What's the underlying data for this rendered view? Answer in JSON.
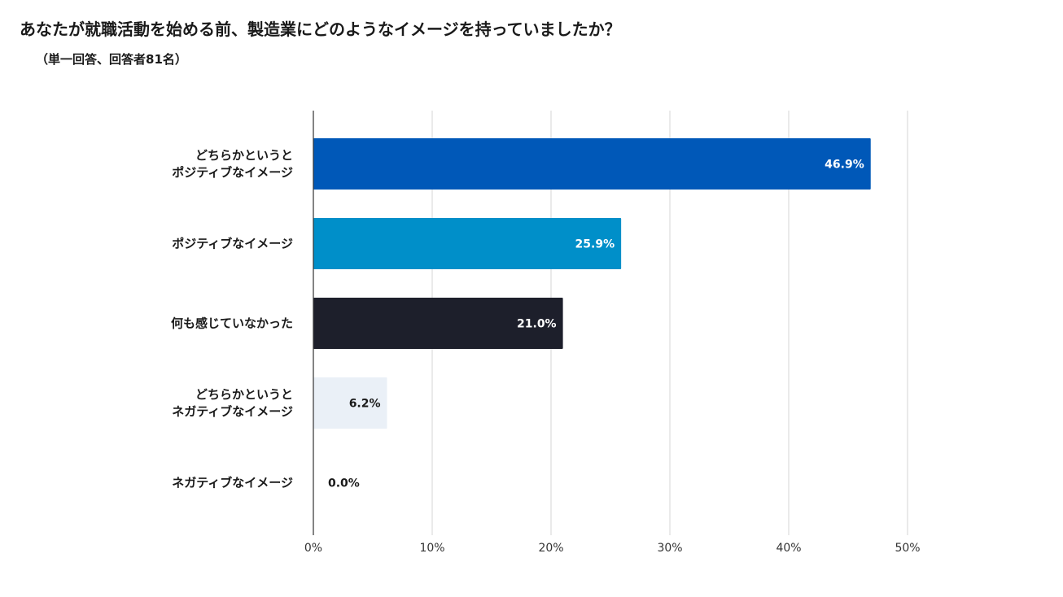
{
  "header": {
    "title": "あなたが就職活動を始める前、製造業にどのようなイメージを持っていましたか？",
    "subtitle": "（単一回答、回答者81名）"
  },
  "chart_data": {
    "type": "bar",
    "orientation": "horizontal",
    "categories": [
      [
        "どちらかというと",
        "ポジティブなイメージ"
      ],
      [
        "ポジティブなイメージ"
      ],
      [
        "何も感じていなかった"
      ],
      [
        "どちらかというと",
        "ネガティブなイメージ"
      ],
      [
        "ネガティブなイメージ"
      ]
    ],
    "values": [
      46.9,
      25.9,
      21.0,
      6.2,
      0.0
    ],
    "value_labels": [
      "46.9%",
      "25.9%",
      "21.0%",
      "6.2%",
      "0.0%"
    ],
    "colors": [
      "#0058b8",
      "#008fc9",
      "#1d1f2b",
      "#eaf0f7",
      "#eaf0f7"
    ],
    "label_colors": [
      "#ffffff",
      "#ffffff",
      "#ffffff",
      "#1a1a1a",
      "#1a1a1a"
    ],
    "xlim": [
      0,
      50
    ],
    "xticks": [
      0,
      10,
      20,
      30,
      40,
      50
    ],
    "xtick_labels": [
      "0%",
      "10%",
      "20%",
      "30%",
      "40%",
      "50%"
    ],
    "grid": true,
    "legend": "none"
  }
}
